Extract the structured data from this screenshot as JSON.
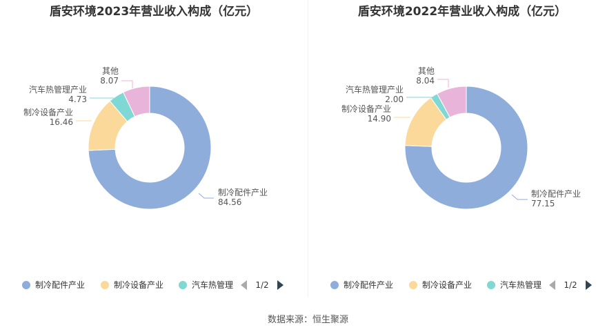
{
  "chart_data": [
    {
      "type": "pie",
      "title": "盾安环境2023年营业收入构成（亿元）",
      "slices": [
        {
          "label": "制冷配件产业",
          "value": 84.56,
          "display": "84.56",
          "color": "#8eaddb"
        },
        {
          "label": "制冷设备产业",
          "value": 16.46,
          "display": "16.46",
          "color": "#fbd99a"
        },
        {
          "label": "汽车热管理产业",
          "value": 4.73,
          "display": "4.73",
          "color": "#7fd8d4"
        },
        {
          "label": "其他",
          "value": 8.07,
          "display": "8.07",
          "color": "#e8b4da"
        }
      ],
      "legend": {
        "position": "bottom",
        "items": [
          "制冷配件产业",
          "制冷设备产业",
          "汽车热管理"
        ],
        "page": "1/2"
      }
    },
    {
      "type": "pie",
      "title": "盾安环境2022年营业收入构成（亿元）",
      "slices": [
        {
          "label": "制冷配件产业",
          "value": 77.15,
          "display": "77.15",
          "color": "#8eaddb"
        },
        {
          "label": "制冷设备产业",
          "value": 14.9,
          "display": "14.90",
          "color": "#fbd99a"
        },
        {
          "label": "汽车热管理产业",
          "value": 2.0,
          "display": "2.00",
          "color": "#7fd8d4"
        },
        {
          "label": "其他",
          "value": 8.04,
          "display": "8.04",
          "color": "#e8b4da"
        }
      ],
      "legend": {
        "position": "bottom",
        "items": [
          "制冷配件产业",
          "制冷设备产业",
          "汽车热管理"
        ],
        "page": "1/2"
      }
    }
  ],
  "source": "数据来源：恒生聚源"
}
